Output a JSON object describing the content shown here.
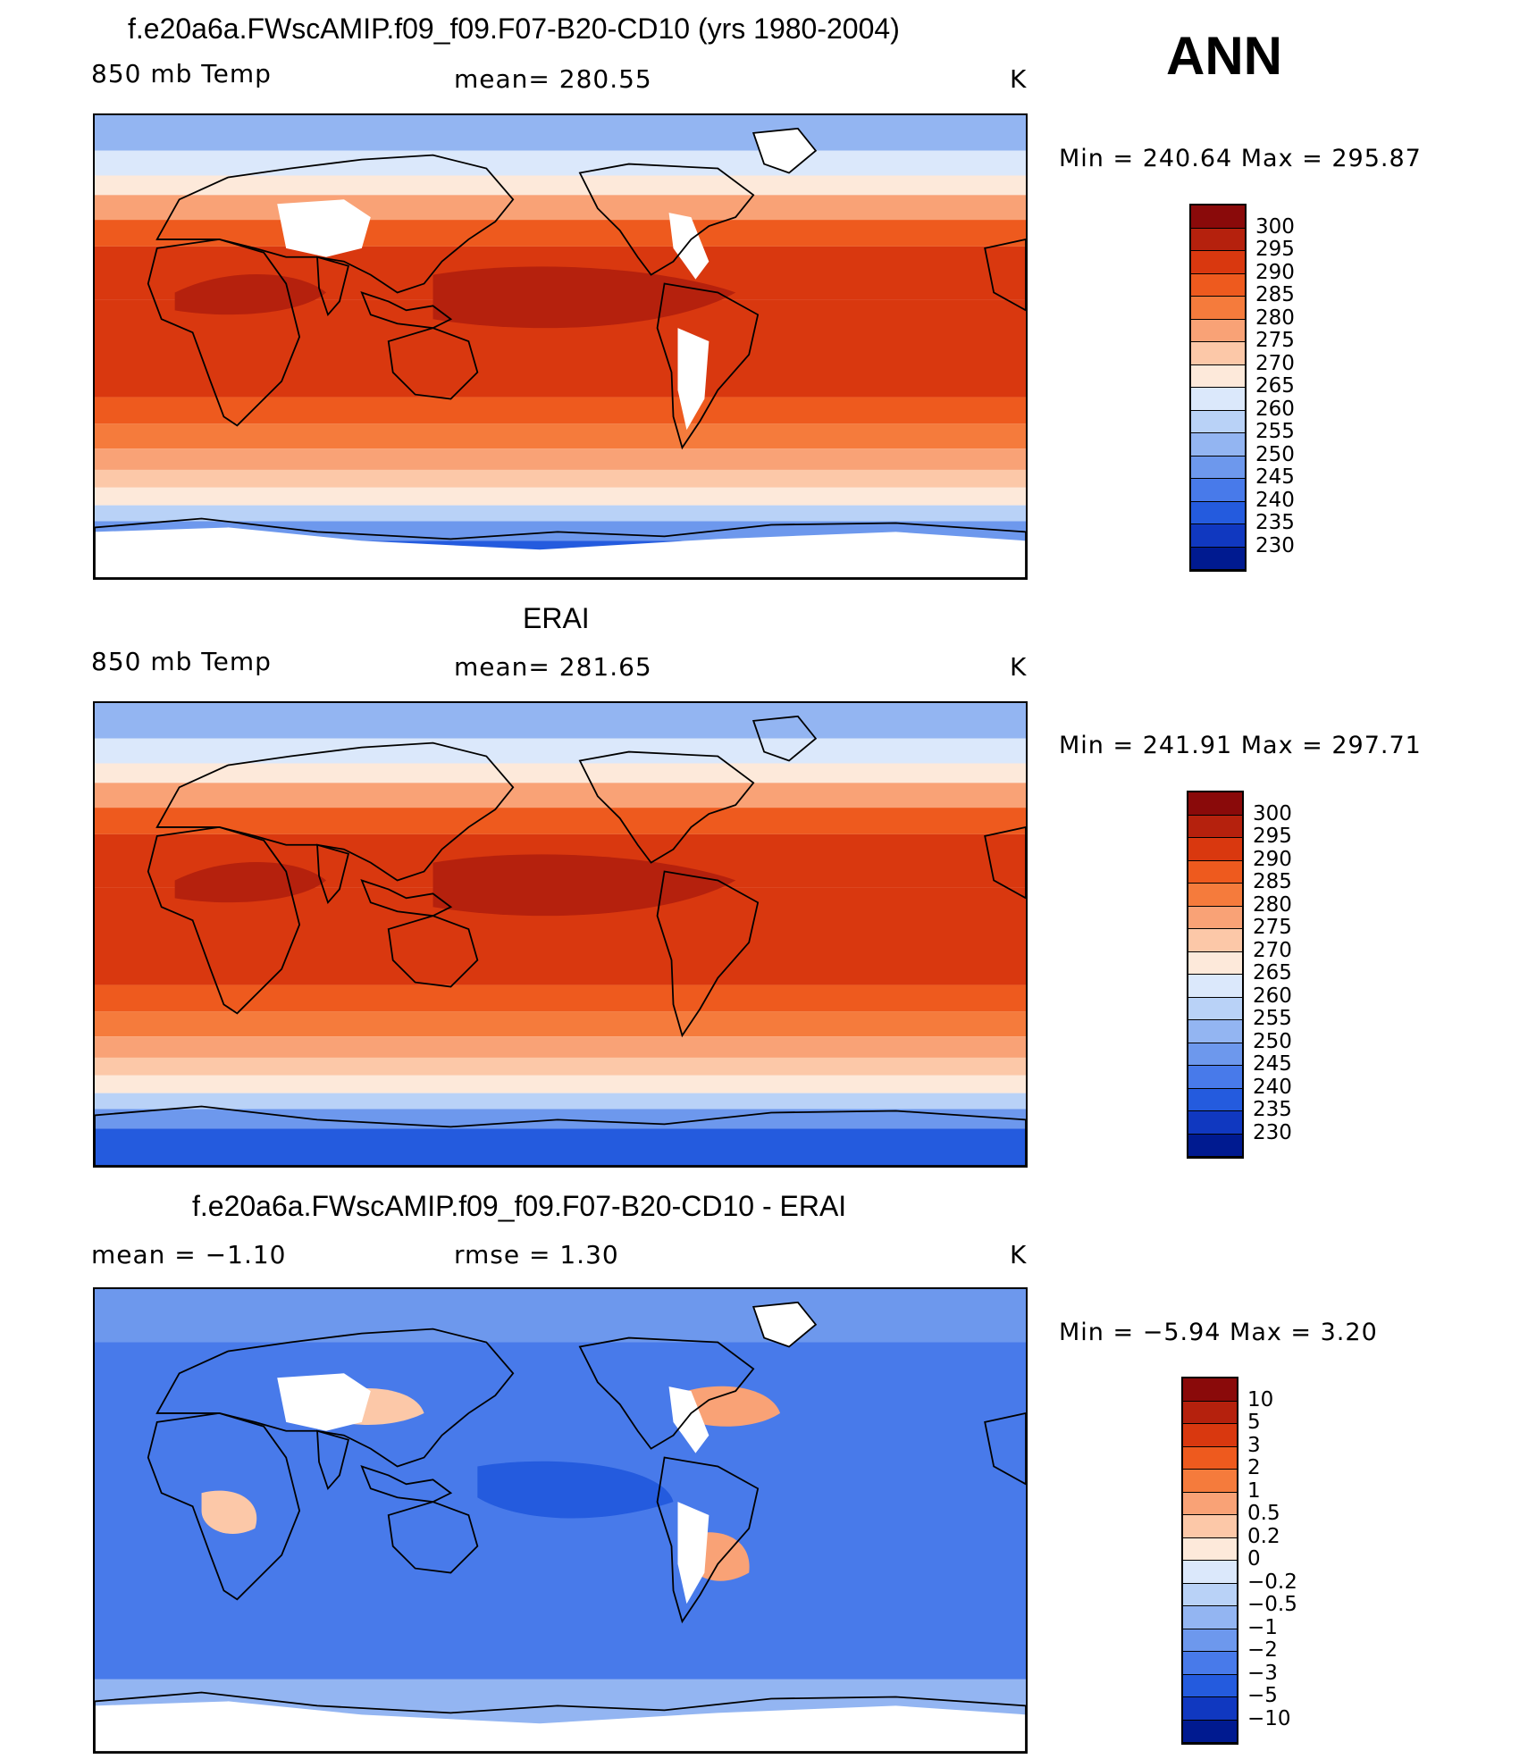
{
  "header": {
    "season": "ANN"
  },
  "panels": [
    {
      "title": "f.e20a6a.FWscAMIP.f09_f09.F07-B20-CD10 (yrs 1980-2004)",
      "left_label": "850 mb Temp",
      "center_label": "mean= 280.55",
      "right_label": "K",
      "minmax": "Min  =  240.64  Max  =  295.87",
      "field": "model",
      "colorbar": [
        "300",
        "295",
        "290",
        "285",
        "280",
        "275",
        "270",
        "265",
        "260",
        "255",
        "250",
        "245",
        "240",
        "235",
        "230"
      ]
    },
    {
      "title": "ERAI",
      "left_label": "850 mb Temp",
      "center_label": "mean= 281.65",
      "right_label": "K",
      "minmax": "Min  =  241.91  Max  =  297.71",
      "field": "obs",
      "colorbar": [
        "300",
        "295",
        "290",
        "285",
        "280",
        "275",
        "270",
        "265",
        "260",
        "255",
        "250",
        "245",
        "240",
        "235",
        "230"
      ]
    },
    {
      "title": "f.e20a6a.FWscAMIP.f09_f09.F07-B20-CD10 - ERAI",
      "left_label": "mean  =    −1.10",
      "center_label": "rmse  =     1.30",
      "right_label": "K",
      "minmax": "Min  =    −5.94  Max  =      3.20",
      "field": "diff",
      "colorbar": [
        "10",
        "5",
        "3",
        "2",
        "1",
        "0.5",
        "0.2",
        "0",
        "−0.2",
        "−0.5",
        "−1",
        "−2",
        "−3",
        "−5",
        "−10"
      ]
    }
  ],
  "colors": {
    "temp_scale": [
      "#8a0a0a",
      "#b5210d",
      "#d9380f",
      "#ee5a1e",
      "#f57b3c",
      "#f9a276",
      "#fcc8a8",
      "#fde9da",
      "#dbe8fb",
      "#b9d2f7",
      "#93b5f2",
      "#6d98ed",
      "#487aea",
      "#245bde",
      "#1038c0",
      "#001a90"
    ],
    "diff_scale": [
      "#8a0a0a",
      "#b5210d",
      "#d9380f",
      "#ee5a1e",
      "#f57b3c",
      "#f9a276",
      "#fcc8a8",
      "#fde9da",
      "#dbe8fb",
      "#b9d2f7",
      "#93b5f2",
      "#6d98ed",
      "#487aea",
      "#245bde",
      "#1038c0",
      "#001a90"
    ]
  }
}
